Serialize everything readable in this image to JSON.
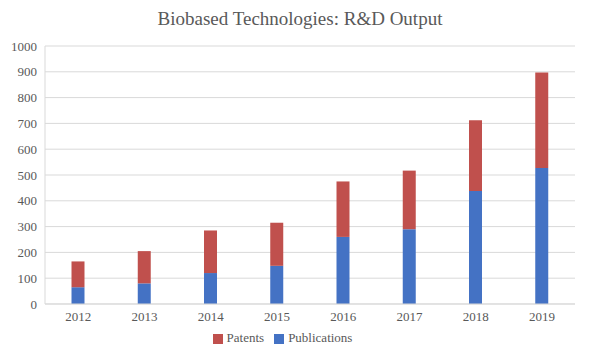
{
  "chart_data": {
    "type": "bar",
    "title": "Biobased Technologies: R&D Output",
    "categories": [
      "2012",
      "2013",
      "2014",
      "2015",
      "2016",
      "2017",
      "2018",
      "2019"
    ],
    "series": [
      {
        "name": "Publications",
        "color": "#4472c4",
        "values": [
          65,
          80,
          120,
          148,
          260,
          290,
          438,
          527
        ]
      },
      {
        "name": "Patents",
        "color": "#c0504d",
        "values": [
          100,
          125,
          165,
          167,
          215,
          227,
          274,
          370
        ]
      }
    ],
    "stacked": true,
    "ylim": [
      0,
      1000
    ],
    "yticks": [
      0,
      100,
      200,
      300,
      400,
      500,
      600,
      700,
      800,
      900,
      1000
    ],
    "grid": true,
    "legend": "bottom"
  }
}
